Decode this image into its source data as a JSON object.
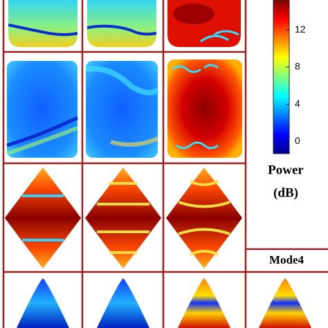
{
  "chart_data": {
    "type": "heatmap",
    "colorbar_label": [
      "Power",
      "(dB)"
    ],
    "zlim": [
      -1.3,
      15.2
    ],
    "zticks": [
      0,
      4,
      8,
      12
    ],
    "annotations": [
      "Mode4"
    ]
  }
}
